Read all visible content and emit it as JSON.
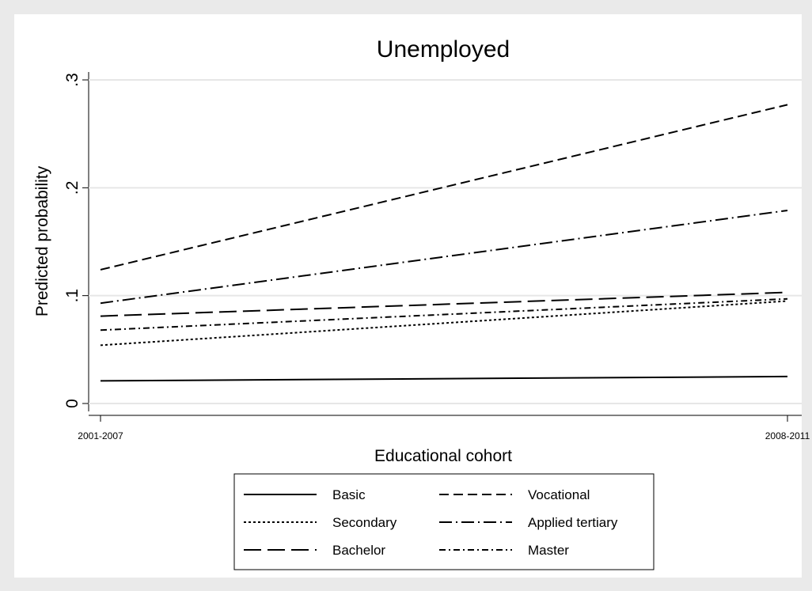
{
  "chart_data": {
    "type": "line",
    "title": "Unemployed",
    "x_label": "Educational cohort",
    "y_label": "Predicted probability",
    "categories": [
      "2001-2007",
      "2008-2011"
    ],
    "series": [
      {
        "name": "Basic",
        "color": "#000000",
        "dash": "none",
        "values": [
          0.021,
          0.025
        ]
      },
      {
        "name": "Vocational",
        "color": "#000000",
        "dash": "12,6",
        "values": [
          0.124,
          0.277
        ]
      },
      {
        "name": "Secondary",
        "color": "#000000",
        "dash": "3,3",
        "values": [
          0.054,
          0.095
        ]
      },
      {
        "name": "Applied tertiary",
        "color": "#000000",
        "dash": "16,5,2,5",
        "values": [
          0.093,
          0.179
        ]
      },
      {
        "name": "Bachelor",
        "color": "#000000",
        "dash": "22,8",
        "values": [
          0.081,
          0.103
        ]
      },
      {
        "name": "Master",
        "color": "#000000",
        "dash": "8,4,2,4",
        "values": [
          0.068,
          0.097
        ]
      }
    ],
    "ylim": [
      0,
      0.3
    ],
    "yticks": [
      0,
      {
        "value": 0.1,
        "label": ".1"
      },
      {
        "value": 0.2,
        "label": ".2"
      },
      {
        "value": 0.3,
        "label": ".3"
      }
    ],
    "grid": true
  }
}
